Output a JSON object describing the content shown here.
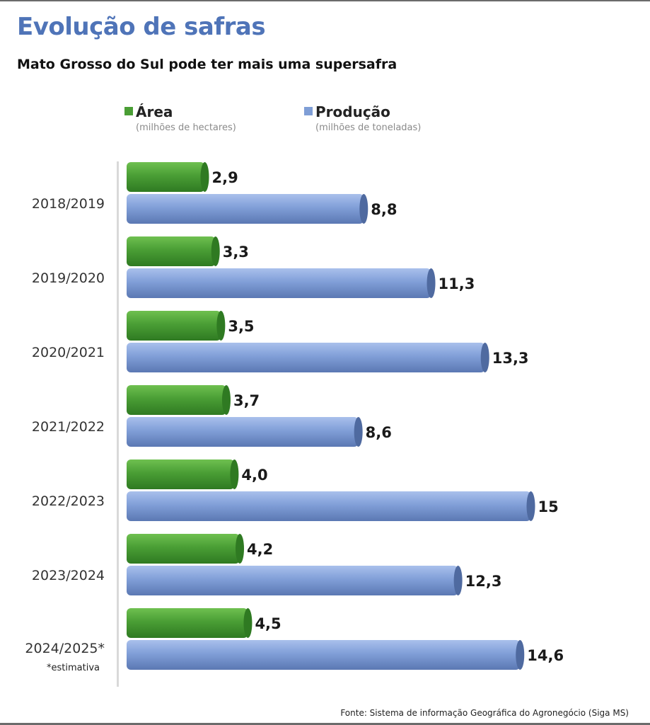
{
  "header": {
    "title": "Evolução de safras",
    "subtitle": "Mato Grosso do Sul pode ter mais uma supersafra"
  },
  "legend": [
    {
      "name": "Área",
      "unit": "(milhões de hectares)",
      "color": "#4a9e35"
    },
    {
      "name": "Produção",
      "unit": "(milhões de toneladas)",
      "color": "#7f9ed6"
    }
  ],
  "footnote": "*estimativa",
  "source": "Fonte: Sistema de informação Geográfica do Agronegócio (Siga MS)",
  "chart_data": {
    "type": "bar",
    "orientation": "horizontal",
    "categories": [
      "2018/2019",
      "2019/2020",
      "2020/2021",
      "2021/2022",
      "2022/2023",
      "2023/2024",
      "2024/2025*"
    ],
    "series": [
      {
        "name": "Área",
        "values": [
          2.9,
          3.3,
          3.5,
          3.7,
          4.0,
          4.2,
          4.5
        ],
        "labels": [
          "2,9",
          "3,3",
          "3,5",
          "3,7",
          "4,0",
          "4,2",
          "4,5"
        ],
        "color": "#4a9e35"
      },
      {
        "name": "Produção",
        "values": [
          8.8,
          11.3,
          13.3,
          8.6,
          15,
          12.3,
          14.6
        ],
        "labels": [
          "8,8",
          "11,3",
          "13,3",
          "8,6",
          "15",
          "12,3",
          "14,6"
        ],
        "color": "#7f9ed6"
      }
    ],
    "legend": "top",
    "grid": false
  }
}
